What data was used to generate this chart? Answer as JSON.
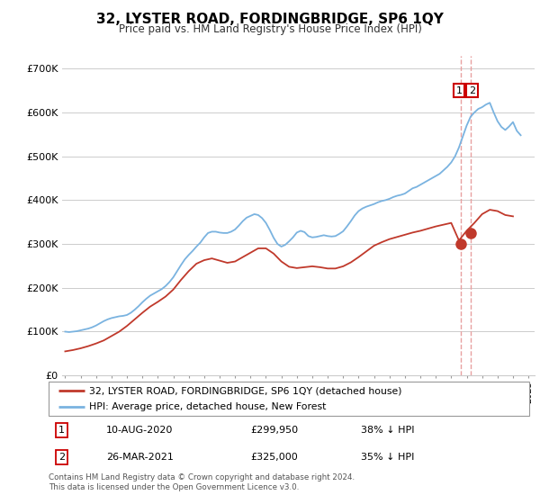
{
  "title": "32, LYSTER ROAD, FORDINGBRIDGE, SP6 1QY",
  "subtitle": "Price paid vs. HM Land Registry's House Price Index (HPI)",
  "ylabel_ticks": [
    "£0",
    "£100K",
    "£200K",
    "£300K",
    "£400K",
    "£500K",
    "£600K",
    "£700K"
  ],
  "ytick_values": [
    0,
    100000,
    200000,
    300000,
    400000,
    500000,
    600000,
    700000
  ],
  "ylim": [
    0,
    730000
  ],
  "xlim_start": 1994.8,
  "xlim_end": 2025.4,
  "background_color": "#ffffff",
  "grid_color": "#cccccc",
  "hpi_color": "#7ab3e0",
  "price_color": "#c0392b",
  "dashed_color": "#e8a0a0",
  "transaction1": {
    "date": "10-AUG-2020",
    "price": "£299,950",
    "hpi_pct": "38% ↓ HPI",
    "year": 2020.6
  },
  "transaction2": {
    "date": "26-MAR-2021",
    "price": "£325,000",
    "hpi_pct": "35% ↓ HPI",
    "year": 2021.25
  },
  "legend_line1": "32, LYSTER ROAD, FORDINGBRIDGE, SP6 1QY (detached house)",
  "legend_line2": "HPI: Average price, detached house, New Forest",
  "footer": "Contains HM Land Registry data © Crown copyright and database right 2024.\nThis data is licensed under the Open Government Licence v3.0.",
  "marker1_value": 299950,
  "marker2_value": 325000,
  "hpi_years": [
    1995.0,
    1995.25,
    1995.5,
    1995.75,
    1996.0,
    1996.25,
    1996.5,
    1996.75,
    1997.0,
    1997.25,
    1997.5,
    1997.75,
    1998.0,
    1998.25,
    1998.5,
    1998.75,
    1999.0,
    1999.25,
    1999.5,
    1999.75,
    2000.0,
    2000.25,
    2000.5,
    2000.75,
    2001.0,
    2001.25,
    2001.5,
    2001.75,
    2002.0,
    2002.25,
    2002.5,
    2002.75,
    2003.0,
    2003.25,
    2003.5,
    2003.75,
    2004.0,
    2004.25,
    2004.5,
    2004.75,
    2005.0,
    2005.25,
    2005.5,
    2005.75,
    2006.0,
    2006.25,
    2006.5,
    2006.75,
    2007.0,
    2007.25,
    2007.5,
    2007.75,
    2008.0,
    2008.25,
    2008.5,
    2008.75,
    2009.0,
    2009.25,
    2009.5,
    2009.75,
    2010.0,
    2010.25,
    2010.5,
    2010.75,
    2011.0,
    2011.25,
    2011.5,
    2011.75,
    2012.0,
    2012.25,
    2012.5,
    2012.75,
    2013.0,
    2013.25,
    2013.5,
    2013.75,
    2014.0,
    2014.25,
    2014.5,
    2014.75,
    2015.0,
    2015.25,
    2015.5,
    2015.75,
    2016.0,
    2016.25,
    2016.5,
    2016.75,
    2017.0,
    2017.25,
    2017.5,
    2017.75,
    2018.0,
    2018.25,
    2018.5,
    2018.75,
    2019.0,
    2019.25,
    2019.5,
    2019.75,
    2020.0,
    2020.25,
    2020.5,
    2020.75,
    2021.0,
    2021.25,
    2021.5,
    2021.75,
    2022.0,
    2022.25,
    2022.5,
    2022.75,
    2023.0,
    2023.25,
    2023.5,
    2023.75,
    2024.0,
    2024.25,
    2024.5
  ],
  "hpi_values": [
    100000,
    99000,
    100000,
    101000,
    103000,
    105000,
    107000,
    110000,
    114000,
    119000,
    124000,
    128000,
    131000,
    133000,
    135000,
    136000,
    138000,
    143000,
    150000,
    158000,
    167000,
    175000,
    182000,
    187000,
    192000,
    197000,
    204000,
    213000,
    224000,
    238000,
    252000,
    265000,
    275000,
    284000,
    294000,
    303000,
    315000,
    325000,
    328000,
    328000,
    326000,
    325000,
    325000,
    328000,
    333000,
    342000,
    352000,
    360000,
    364000,
    368000,
    366000,
    359000,
    348000,
    332000,
    314000,
    300000,
    294000,
    298000,
    306000,
    315000,
    326000,
    330000,
    327000,
    318000,
    315000,
    316000,
    318000,
    320000,
    318000,
    317000,
    318000,
    323000,
    329000,
    340000,
    352000,
    365000,
    375000,
    381000,
    385000,
    388000,
    391000,
    395000,
    398000,
    400000,
    403000,
    407000,
    410000,
    412000,
    415000,
    421000,
    427000,
    430000,
    435000,
    440000,
    445000,
    450000,
    455000,
    460000,
    468000,
    476000,
    486000,
    500000,
    520000,
    545000,
    570000,
    590000,
    600000,
    608000,
    612000,
    618000,
    622000,
    600000,
    580000,
    567000,
    560000,
    568000,
    578000,
    558000,
    548000
  ],
  "price_years": [
    1995.0,
    1995.5,
    1996.0,
    1996.5,
    1997.0,
    1997.5,
    1998.0,
    1998.5,
    1999.0,
    1999.5,
    2000.0,
    2000.5,
    2001.0,
    2001.5,
    2002.0,
    2002.5,
    2003.0,
    2003.5,
    2004.0,
    2004.5,
    2005.0,
    2005.5,
    2006.0,
    2006.5,
    2007.0,
    2007.5,
    2008.0,
    2008.5,
    2009.0,
    2009.5,
    2010.0,
    2010.5,
    2011.0,
    2011.5,
    2012.0,
    2012.5,
    2013.0,
    2013.5,
    2014.0,
    2014.5,
    2015.0,
    2015.5,
    2016.0,
    2016.5,
    2017.0,
    2017.5,
    2018.0,
    2018.5,
    2019.0,
    2019.5,
    2020.0,
    2020.5,
    2021.0,
    2021.5,
    2022.0,
    2022.5,
    2023.0,
    2023.5,
    2024.0
  ],
  "price_values": [
    55000,
    58000,
    62000,
    67000,
    73000,
    80000,
    90000,
    100000,
    113000,
    128000,
    143000,
    157000,
    168000,
    180000,
    196000,
    218000,
    238000,
    255000,
    263000,
    267000,
    262000,
    257000,
    260000,
    270000,
    280000,
    290000,
    290000,
    278000,
    260000,
    248000,
    245000,
    247000,
    249000,
    247000,
    244000,
    244000,
    249000,
    258000,
    270000,
    283000,
    296000,
    304000,
    311000,
    316000,
    321000,
    326000,
    330000,
    335000,
    340000,
    344000,
    348000,
    308000,
    330000,
    348000,
    368000,
    378000,
    375000,
    366000,
    363000
  ]
}
